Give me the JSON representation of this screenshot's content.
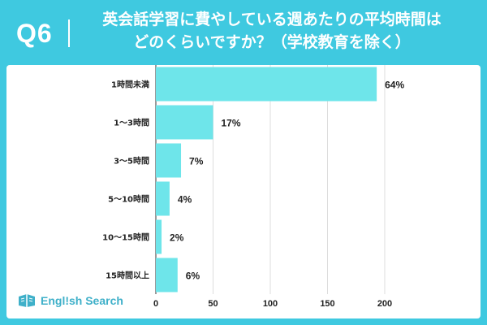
{
  "header": {
    "question_label": "Q6",
    "title_line1": "英会話学習に費やしている週あたりの平均時間は",
    "title_line2": "どのくらいですか？（学校教育を除く）"
  },
  "logo": {
    "text": "Engl!sh Search"
  },
  "colors": {
    "brand": "#3fc9e0",
    "bar": "#6ee5ea",
    "grid": "#dddddd",
    "text": "#222222"
  },
  "chart_data": {
    "type": "bar",
    "orientation": "horizontal",
    "title": "英会話学習に費やしている週あたりの平均時間はどのくらいですか？（学校教育を除く）",
    "categories": [
      "1時間未満",
      "1〜3時間",
      "3〜5時間",
      "5〜10時間",
      "10〜15時間",
      "15時間以上"
    ],
    "values": [
      193,
      50,
      22,
      12,
      5,
      19
    ],
    "data_labels": [
      "64%",
      "17%",
      "7%",
      "4%",
      "2%",
      "6%"
    ],
    "xlim": [
      0,
      200
    ],
    "xticks": [
      0,
      50,
      100,
      150,
      200
    ],
    "xlabel": "",
    "ylabel": "",
    "grid": true
  }
}
